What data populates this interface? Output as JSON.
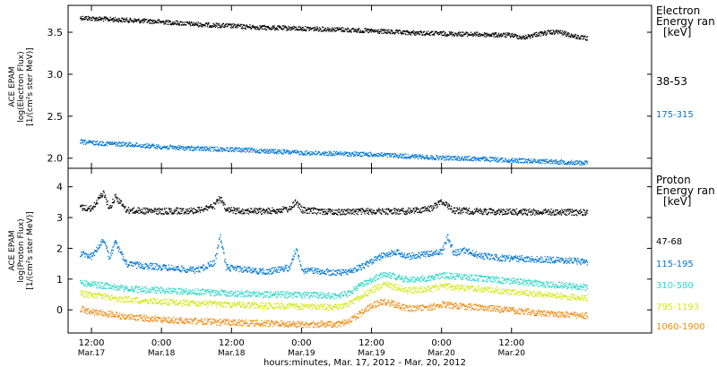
{
  "chart_data": [
    {
      "type": "scatter",
      "panel": "electron",
      "ylabel_lines": [
        "ACE EPAM",
        "log(Electron Flux)",
        "[1/(cm²s ster MeV)]"
      ],
      "yticks": [
        2.0,
        2.5,
        3.0,
        3.5
      ],
      "ytick_labels": [
        "2.0",
        "2.5",
        "3.0",
        "3.5"
      ],
      "ylim": [
        1.88,
        3.82
      ],
      "legend_title": [
        "Electron",
        "Energy ran",
        "[keV]"
      ],
      "series": [
        {
          "name": "38-53",
          "color": "#000000",
          "points": [
            [
              -2,
              3.68
            ],
            [
              0,
              3.67
            ],
            [
              6,
              3.65
            ],
            [
              12,
              3.63
            ],
            [
              18,
              3.6
            ],
            [
              24,
              3.58
            ],
            [
              30,
              3.56
            ],
            [
              36,
              3.55
            ],
            [
              42,
              3.54
            ],
            [
              48,
              3.52
            ],
            [
              54,
              3.5
            ],
            [
              60,
              3.49
            ],
            [
              66,
              3.48
            ],
            [
              72,
              3.47
            ],
            [
              74,
              3.44
            ],
            [
              76,
              3.48
            ],
            [
              78,
              3.5
            ],
            [
              80,
              3.51
            ],
            [
              82,
              3.47
            ],
            [
              84,
              3.44
            ],
            [
              85,
              3.43
            ]
          ]
        },
        {
          "name": "175-315",
          "color": "#0077d4",
          "points": [
            [
              -2,
              2.2
            ],
            [
              0,
              2.19
            ],
            [
              6,
              2.17
            ],
            [
              12,
              2.14
            ],
            [
              18,
              2.12
            ],
            [
              24,
              2.11
            ],
            [
              30,
              2.09
            ],
            [
              36,
              2.07
            ],
            [
              42,
              2.06
            ],
            [
              48,
              2.05
            ],
            [
              54,
              2.03
            ],
            [
              60,
              2.01
            ],
            [
              66,
              2.0
            ],
            [
              72,
              1.98
            ],
            [
              78,
              1.97
            ],
            [
              84,
              1.95
            ],
            [
              85,
              1.95
            ]
          ]
        }
      ]
    },
    {
      "type": "scatter",
      "panel": "proton",
      "ylabel_lines": [
        "ACE EPAM",
        "log(Proton Flux)",
        "[1/(cm²s ster MeV)]"
      ],
      "yticks": [
        0,
        1,
        2,
        3,
        4
      ],
      "ytick_labels": [
        "0",
        "1",
        "2",
        "3",
        "4"
      ],
      "ylim": [
        -0.75,
        4.6
      ],
      "legend_title": [
        "Proton",
        "Energy ran",
        "[keV]"
      ],
      "series": [
        {
          "name": "47-68",
          "color": "#000000",
          "points": [
            [
              -2,
              3.35
            ],
            [
              0,
              3.3
            ],
            [
              2,
              3.85
            ],
            [
              3,
              3.3
            ],
            [
              4,
              3.7
            ],
            [
              6,
              3.25
            ],
            [
              12,
              3.22
            ],
            [
              18,
              3.25
            ],
            [
              21,
              3.4
            ],
            [
              22,
              3.65
            ],
            [
              23,
              3.25
            ],
            [
              30,
              3.22
            ],
            [
              34,
              3.3
            ],
            [
              35,
              3.55
            ],
            [
              36,
              3.25
            ],
            [
              42,
              3.2
            ],
            [
              48,
              3.22
            ],
            [
              54,
              3.22
            ],
            [
              58,
              3.3
            ],
            [
              60,
              3.55
            ],
            [
              61,
              3.4
            ],
            [
              62,
              3.25
            ],
            [
              66,
              3.22
            ],
            [
              72,
              3.2
            ],
            [
              78,
              3.2
            ],
            [
              85,
              3.18
            ]
          ]
        },
        {
          "name": "115-195",
          "color": "#0077d4",
          "points": [
            [
              -2,
              1.85
            ],
            [
              0,
              1.75
            ],
            [
              2,
              2.3
            ],
            [
              3,
              1.7
            ],
            [
              4,
              2.2
            ],
            [
              6,
              1.5
            ],
            [
              12,
              1.4
            ],
            [
              18,
              1.3
            ],
            [
              21,
              1.55
            ],
            [
              22,
              2.4
            ],
            [
              23,
              1.4
            ],
            [
              30,
              1.25
            ],
            [
              34,
              1.4
            ],
            [
              35,
              2.0
            ],
            [
              36,
              1.3
            ],
            [
              42,
              1.22
            ],
            [
              44,
              1.25
            ],
            [
              46,
              1.4
            ],
            [
              48,
              1.6
            ],
            [
              50,
              1.8
            ],
            [
              52,
              1.9
            ],
            [
              54,
              1.75
            ],
            [
              58,
              1.85
            ],
            [
              60,
              1.9
            ],
            [
              61,
              2.4
            ],
            [
              62,
              1.85
            ],
            [
              64,
              1.95
            ],
            [
              66,
              1.8
            ],
            [
              70,
              1.7
            ],
            [
              78,
              1.65
            ],
            [
              85,
              1.58
            ]
          ]
        },
        {
          "name": "310-580",
          "color": "#2ed8c8",
          "points": [
            [
              -2,
              0.9
            ],
            [
              0,
              0.85
            ],
            [
              6,
              0.7
            ],
            [
              12,
              0.65
            ],
            [
              18,
              0.6
            ],
            [
              24,
              0.55
            ],
            [
              30,
              0.52
            ],
            [
              36,
              0.5
            ],
            [
              42,
              0.48
            ],
            [
              44,
              0.55
            ],
            [
              46,
              0.8
            ],
            [
              48,
              1.0
            ],
            [
              50,
              1.2
            ],
            [
              52,
              1.1
            ],
            [
              54,
              1.0
            ],
            [
              58,
              1.05
            ],
            [
              60,
              1.15
            ],
            [
              62,
              1.1
            ],
            [
              66,
              1.05
            ],
            [
              72,
              0.95
            ],
            [
              78,
              0.85
            ],
            [
              85,
              0.75
            ]
          ]
        },
        {
          "name": "795-1193",
          "color": "#d4e81c",
          "points": [
            [
              -2,
              0.55
            ],
            [
              0,
              0.5
            ],
            [
              6,
              0.35
            ],
            [
              12,
              0.28
            ],
            [
              18,
              0.22
            ],
            [
              24,
              0.18
            ],
            [
              30,
              0.15
            ],
            [
              36,
              0.12
            ],
            [
              42,
              0.1
            ],
            [
              44,
              0.2
            ],
            [
              46,
              0.45
            ],
            [
              48,
              0.65
            ],
            [
              50,
              0.85
            ],
            [
              52,
              0.75
            ],
            [
              54,
              0.65
            ],
            [
              58,
              0.7
            ],
            [
              60,
              0.8
            ],
            [
              62,
              0.75
            ],
            [
              66,
              0.7
            ],
            [
              72,
              0.6
            ],
            [
              78,
              0.5
            ],
            [
              85,
              0.4
            ]
          ]
        },
        {
          "name": "1060-1900",
          "color": "#f08a10",
          "points": [
            [
              -2,
              0.05
            ],
            [
              0,
              -0.05
            ],
            [
              6,
              -0.2
            ],
            [
              12,
              -0.3
            ],
            [
              18,
              -0.35
            ],
            [
              24,
              -0.4
            ],
            [
              30,
              -0.42
            ],
            [
              36,
              -0.45
            ],
            [
              42,
              -0.45
            ],
            [
              44,
              -0.35
            ],
            [
              46,
              -0.1
            ],
            [
              48,
              0.15
            ],
            [
              50,
              0.3
            ],
            [
              52,
              0.2
            ],
            [
              54,
              0.05
            ],
            [
              58,
              0.1
            ],
            [
              60,
              0.2
            ],
            [
              62,
              0.15
            ],
            [
              66,
              0.1
            ],
            [
              72,
              0.0
            ],
            [
              78,
              -0.1
            ],
            [
              85,
              -0.18
            ]
          ]
        }
      ]
    }
  ],
  "x_axis": {
    "range_hours": [
      -4,
      96
    ],
    "ticks": [
      {
        "h": 0,
        "time": "12:00",
        "date": "Mar.17"
      },
      {
        "h": 12,
        "time": "0:00",
        "date": "Mar.18"
      },
      {
        "h": 24,
        "time": "12:00",
        "date": "Mar.18"
      },
      {
        "h": 36,
        "time": "0:00",
        "date": "Mar.19"
      },
      {
        "h": 48,
        "time": "12:00",
        "date": "Mar.19"
      },
      {
        "h": 60,
        "time": "0:00",
        "date": "Mar.20"
      },
      {
        "h": 72,
        "time": "12:00",
        "date": "Mar.20"
      }
    ],
    "title": "hours:minutes, Mar. 17, 2012 - Mar. 20, 2012"
  }
}
